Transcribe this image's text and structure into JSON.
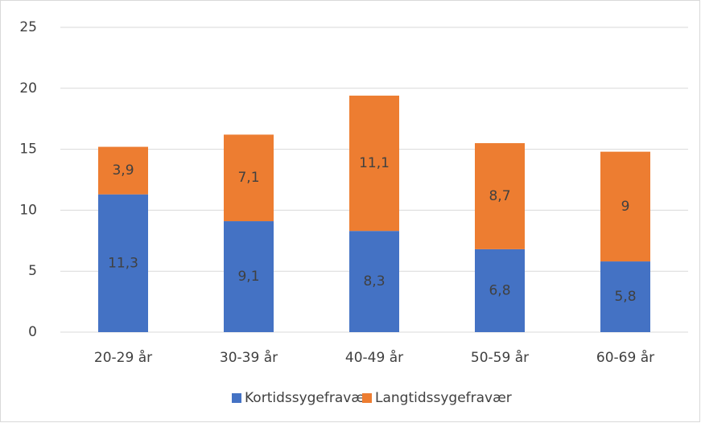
{
  "chart_data": {
    "type": "stacked_bar",
    "categories": [
      "20-29 år",
      "30-39 år",
      "40-49 år",
      "50-59 år",
      "60-69 år"
    ],
    "series": [
      {
        "name": "Kortidssygefravær",
        "color": "#4472c4",
        "values": [
          11.3,
          9.1,
          8.3,
          6.8,
          5.8
        ],
        "value_labels": [
          "11,3",
          "9,1",
          "8,3",
          "6,8",
          "5,8"
        ]
      },
      {
        "name": "Langtidssygefravær",
        "color": "#ed7d31",
        "values": [
          3.9,
          7.1,
          11.1,
          8.7,
          9
        ],
        "value_labels": [
          "3,9",
          "7,1",
          "11,1",
          "8,7",
          "9"
        ]
      }
    ],
    "ylim": [
      0,
      25
    ],
    "yticks": [
      0,
      5,
      10,
      15,
      20,
      25
    ],
    "grid": true,
    "legend": "bottom"
  }
}
